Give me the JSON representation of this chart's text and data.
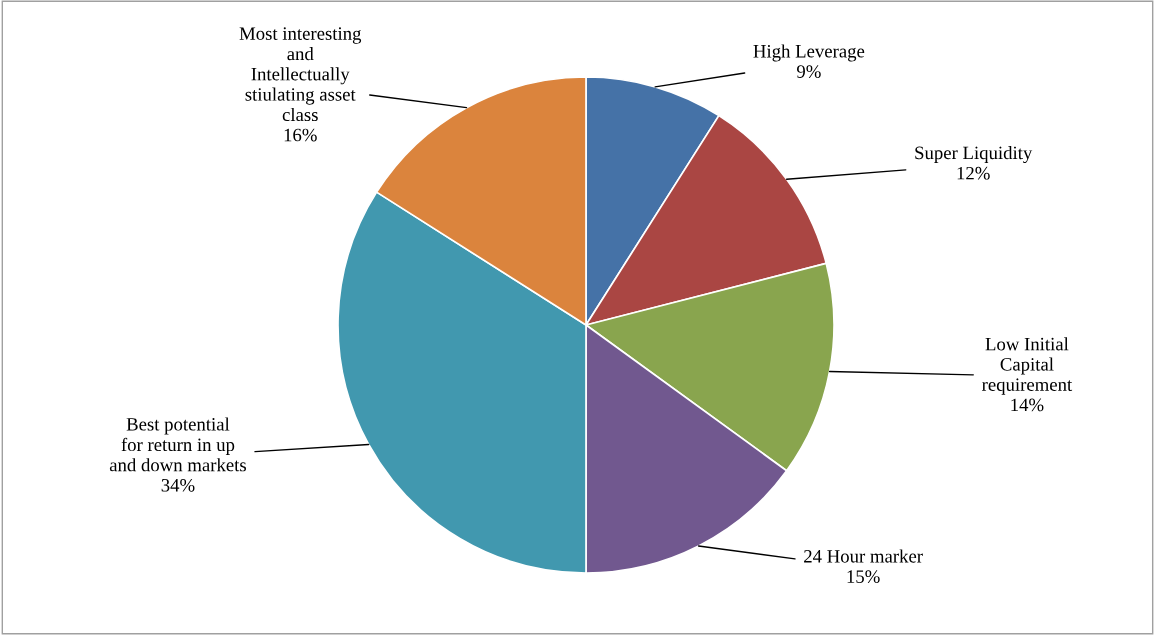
{
  "chart_data": {
    "type": "pie",
    "categories": [
      "High Leverage",
      "Super Liquidity",
      "Low Initial Capital requirement",
      "24 Hour marker",
      "Best potential for return in up and down markets",
      "Most interesting and Intellectually stiulating asset class"
    ],
    "values": [
      9,
      12,
      14,
      15,
      34,
      16
    ],
    "value_labels": [
      "9%",
      "12%",
      "14%",
      "15%",
      "34%",
      "16%"
    ],
    "colors": [
      "#4572a7",
      "#aa4643",
      "#89a54e",
      "#71588f",
      "#4198af",
      "#db843d"
    ],
    "legend": false
  }
}
